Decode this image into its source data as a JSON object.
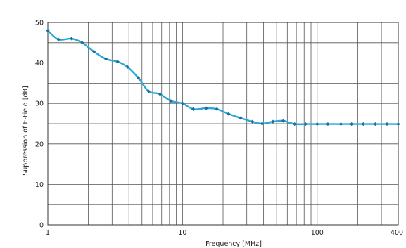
{
  "chart_data": {
    "type": "line",
    "title": "",
    "xlabel": "Frequency [MHz]",
    "ylabel": "Suppression of E-Field [dB]",
    "xscale": "log",
    "xlim": [
      1,
      400
    ],
    "ylim": [
      0,
      50
    ],
    "grid": true,
    "y_ticks": [
      0,
      10,
      20,
      30,
      40,
      50
    ],
    "x_tick_labels": [
      {
        "value": 1,
        "label": "1"
      },
      {
        "value": 10,
        "label": "10"
      },
      {
        "value": 100,
        "label": "100"
      },
      {
        "value": 400,
        "label": "400"
      }
    ],
    "x_minor_gridlines": [
      2,
      3,
      4,
      5,
      6,
      7,
      8,
      9,
      20,
      30,
      40,
      50,
      60,
      70,
      80,
      90,
      200,
      300
    ],
    "y_minor_gridlines": [
      5,
      15,
      25,
      35,
      45
    ],
    "series": [
      {
        "color": "#29a8d8",
        "marker": "diamond",
        "marker_color": "#1b6f9a",
        "x": [
          1,
          1.2,
          1.5,
          1.8,
          2.2,
          2.7,
          3.3,
          3.9,
          4.7,
          5.6,
          6.8,
          8.2,
          10,
          12,
          15,
          18,
          22,
          27,
          33,
          39,
          47,
          56,
          68,
          82,
          100,
          120,
          150,
          180,
          220,
          270,
          330,
          400
        ],
        "y": [
          48,
          45.8,
          46,
          45,
          42.8,
          41,
          40.3,
          39,
          36.3,
          33,
          32.3,
          30.6,
          30,
          28.6,
          28.8,
          28.6,
          27.4,
          26.4,
          25.5,
          25,
          25.5,
          25.7,
          24.9,
          24.9,
          24.9,
          24.9,
          24.9,
          24.9,
          24.9,
          24.9,
          24.9,
          24.9
        ]
      }
    ]
  }
}
